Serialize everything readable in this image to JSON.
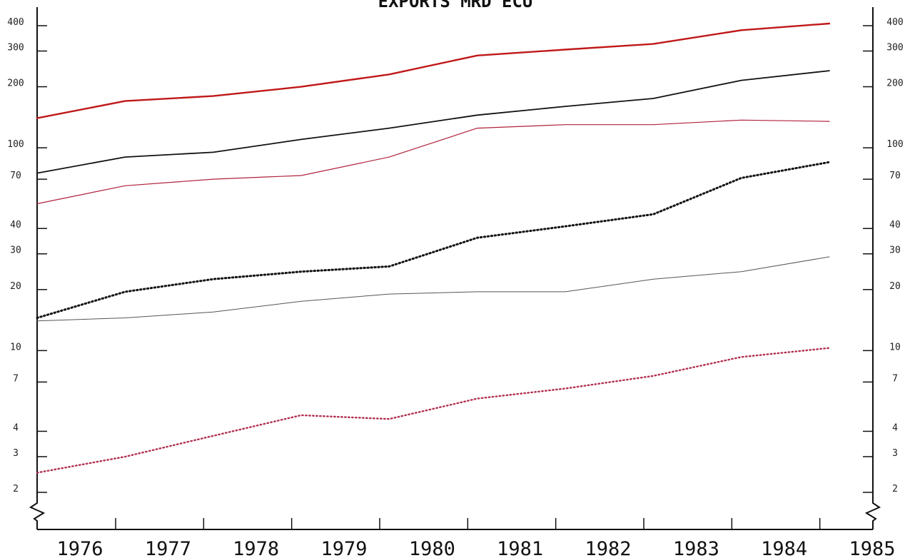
{
  "chart_data": {
    "type": "line",
    "title": "EXPORTS    MRD ECU",
    "xlabel": "",
    "ylabel": "",
    "y_scale": "log",
    "ylim": [
      2,
      400
    ],
    "y_ticks": [
      2,
      3,
      4,
      7,
      10,
      20,
      30,
      40,
      70,
      100,
      200,
      300,
      400
    ],
    "x": [
      1976,
      1977,
      1978,
      1979,
      1980,
      1981,
      1982,
      1983,
      1984,
      1985
    ],
    "grid": false,
    "legend": "none",
    "series": [
      {
        "color": "#c01818",
        "style": "solid",
        "width": 2.4,
        "values": [
          140,
          170,
          180,
          200,
          230,
          285,
          305,
          325,
          380,
          410
        ]
      },
      {
        "color": "#111111",
        "style": "solid",
        "width": 1.8,
        "values": [
          75,
          90,
          95,
          110,
          125,
          145,
          160,
          175,
          215,
          240
        ]
      },
      {
        "color": "#b0203a",
        "style": "solid",
        "width": 1.2,
        "values": [
          53,
          65,
          70,
          73,
          90,
          125,
          130,
          130,
          137,
          135
        ]
      },
      {
        "color": "#111111",
        "style": "dotted",
        "width": 3,
        "values": [
          14.5,
          19.5,
          22.5,
          24.5,
          26,
          36,
          41,
          47,
          71,
          85
        ]
      },
      {
        "color": "#555555",
        "style": "solid",
        "width": 1,
        "values": [
          14,
          14.5,
          15.5,
          17.5,
          19,
          19.5,
          19.5,
          22.5,
          24.5,
          29
        ]
      },
      {
        "color": "#b03050",
        "style": "dotted",
        "width": 2.4,
        "values": [
          2.5,
          3.0,
          3.8,
          4.8,
          4.6,
          5.8,
          6.5,
          7.5,
          9.3,
          10.3
        ]
      }
    ]
  }
}
